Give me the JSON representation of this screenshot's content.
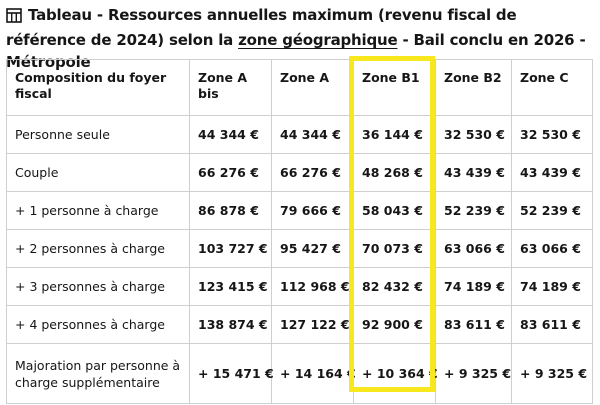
{
  "title": {
    "part1": "Tableau - Ressources annuelles maximum (revenu fiscal de référence de 2024) selon la ",
    "link": "zone géographique",
    "part2": " - Bail conclu en 2026 - Métropole"
  },
  "table": {
    "headers": [
      "Composition du foyer fiscal",
      "Zone A bis",
      "Zone A",
      "Zone B1",
      "Zone B2",
      "Zone C"
    ],
    "rows": [
      {
        "label": "Personne seule",
        "values": [
          "44 344 €",
          "44 344 €",
          "36 144 €",
          "32 530 €",
          "32 530 €"
        ]
      },
      {
        "label": "Couple",
        "values": [
          "66 276 €",
          "66 276 €",
          "48 268 €",
          "43 439 €",
          "43 439 €"
        ]
      },
      {
        "label": "+ 1 personne à charge",
        "values": [
          "86 878 €",
          "79 666 €",
          "58 043 €",
          "52 239 €",
          "52 239 €"
        ]
      },
      {
        "label": "+ 2 personnes à charge",
        "values": [
          "103 727 €",
          "95 427 €",
          "70 073 €",
          "63 066 €",
          "63 066 €"
        ]
      },
      {
        "label": "+ 3 personnes à charge",
        "values": [
          "123 415 €",
          "112 968 €",
          "82 432 €",
          "74 189 €",
          "74 189 €"
        ]
      },
      {
        "label": "+ 4 personnes à charge",
        "values": [
          "138 874 €",
          "127 122 €",
          "92 900 €",
          "83 611 €",
          "83 611 €"
        ]
      },
      {
        "label": "Majoration par personne à charge supplémentaire",
        "values": [
          "+ 15 471 €",
          "+ 14 164 €",
          "+ 10 364 €",
          "+ 9 325 €",
          "+ 9 325 €"
        ]
      }
    ]
  },
  "highlight": {
    "column": "Zone B1",
    "color": "#f8e71c"
  }
}
